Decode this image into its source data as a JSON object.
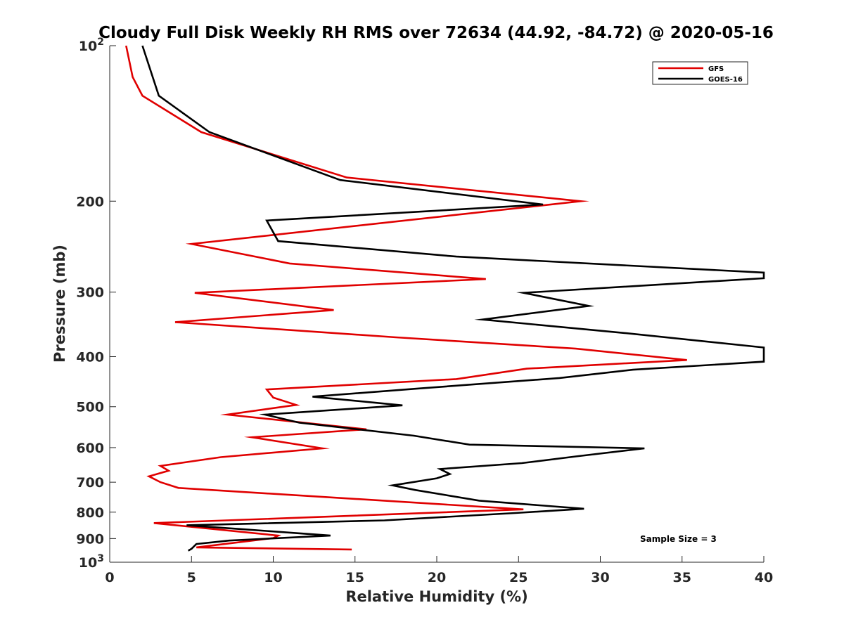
{
  "chart_data": {
    "type": "line",
    "title": "Cloudy Full Disk Weekly RH RMS over 72634 (44.92, -84.72) @ 2020-05-16",
    "xlabel": "Relative Humidity (%)",
    "ylabel": "Pressure (mb)",
    "xlim": [
      0,
      40
    ],
    "ylim": [
      100,
      1000
    ],
    "y_scale": "log",
    "y_reversed": true,
    "grid": false,
    "legend_position": "top-right",
    "x_ticks": [
      0,
      5,
      10,
      15,
      20,
      25,
      30,
      35,
      40
    ],
    "y_ticks": [
      {
        "value": 100,
        "base": "10",
        "exp": "2"
      },
      {
        "value": 200,
        "label": "200"
      },
      {
        "value": 300,
        "label": "300"
      },
      {
        "value": 400,
        "label": "400"
      },
      {
        "value": 500,
        "label": "500"
      },
      {
        "value": 600,
        "label": "600"
      },
      {
        "value": 700,
        "label": "700"
      },
      {
        "value": 800,
        "label": "800"
      },
      {
        "value": 900,
        "label": "900"
      },
      {
        "value": 1000,
        "base": "10",
        "exp": "3"
      }
    ],
    "annotation": "Sample Size = 3",
    "series": [
      {
        "name": "GFS",
        "color": "#e00000",
        "points": [
          [
            1.0,
            100
          ],
          [
            1.4,
            115
          ],
          [
            2.0,
            125
          ],
          [
            5.6,
            147
          ],
          [
            14.5,
            180
          ],
          [
            28.8,
            200
          ],
          [
            5.0,
            242
          ],
          [
            11.0,
            264
          ],
          [
            23.0,
            283
          ],
          [
            5.2,
            301
          ],
          [
            13.7,
            325
          ],
          [
            4.0,
            343
          ],
          [
            17.5,
            367
          ],
          [
            28.5,
            386
          ],
          [
            35.3,
            406
          ],
          [
            25.5,
            422
          ],
          [
            21.2,
            442
          ],
          [
            9.6,
            463
          ],
          [
            10.0,
            480
          ],
          [
            11.4,
            496
          ],
          [
            7.2,
            518
          ],
          [
            15.7,
            553
          ],
          [
            8.7,
            573
          ],
          [
            13.0,
            602
          ],
          [
            6.8,
            626
          ],
          [
            3.1,
            651
          ],
          [
            3.6,
            665
          ],
          [
            2.4,
            682
          ],
          [
            3.1,
            700
          ],
          [
            4.2,
            718
          ],
          [
            25.3,
            790
          ],
          [
            2.7,
            840
          ],
          [
            10.3,
            888
          ],
          [
            10.0,
            898
          ],
          [
            5.3,
            936
          ],
          [
            14.8,
            945
          ]
        ]
      },
      {
        "name": "GOES-16",
        "color": "#000000",
        "points": [
          [
            2.0,
            100
          ],
          [
            3.0,
            125
          ],
          [
            6.1,
            147
          ],
          [
            14.1,
            182
          ],
          [
            26.5,
            203
          ],
          [
            9.6,
            218
          ],
          [
            10.3,
            239
          ],
          [
            21.2,
            256
          ],
          [
            40,
            275
          ],
          [
            40,
            282
          ],
          [
            25.3,
            301
          ],
          [
            29.3,
            319
          ],
          [
            22.8,
            339
          ],
          [
            31.5,
            360
          ],
          [
            40,
            384
          ],
          [
            40,
            409
          ],
          [
            32.0,
            424
          ],
          [
            27.5,
            440
          ],
          [
            18.9,
            461
          ],
          [
            12.4,
            478
          ],
          [
            17.9,
            497
          ],
          [
            9.5,
            518
          ],
          [
            11.6,
            537
          ],
          [
            18.6,
            569
          ],
          [
            22.0,
            592
          ],
          [
            32.7,
            602
          ],
          [
            28.5,
            624
          ],
          [
            25.2,
            643
          ],
          [
            20.2,
            660
          ],
          [
            20.8,
            675
          ],
          [
            20.0,
            688
          ],
          [
            17.3,
            710
          ],
          [
            18.7,
            725
          ],
          [
            22.6,
            760
          ],
          [
            29.0,
            788
          ],
          [
            24.8,
            803
          ],
          [
            16.8,
            830
          ],
          [
            4.7,
            848
          ],
          [
            8.5,
            865
          ],
          [
            13.5,
            888
          ],
          [
            7.3,
            908
          ],
          [
            5.3,
            922
          ],
          [
            5.0,
            942
          ],
          [
            4.8,
            950
          ]
        ]
      }
    ]
  }
}
